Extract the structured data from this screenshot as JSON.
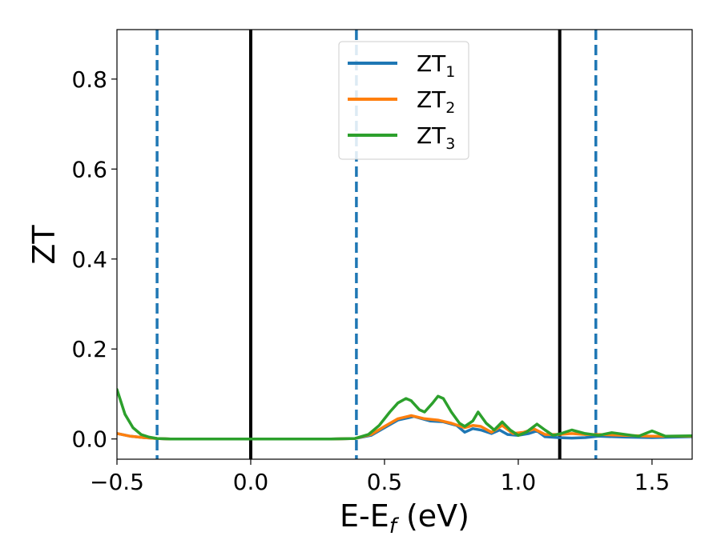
{
  "chart_data": {
    "type": "line",
    "xlabel": {
      "main": "E-E",
      "sub": "f",
      "tail": " (eV)"
    },
    "ylabel": "ZT",
    "xlim": [
      -0.5,
      1.65
    ],
    "ylim": [
      -0.045,
      0.91
    ],
    "xticks": [
      {
        "value": -0.5,
        "label": "−0.5"
      },
      {
        "value": 0.0,
        "label": "0.0"
      },
      {
        "value": 0.5,
        "label": "0.5"
      },
      {
        "value": 1.0,
        "label": "1.0"
      },
      {
        "value": 1.5,
        "label": "1.5"
      }
    ],
    "yticks": [
      {
        "value": 0.0,
        "label": "0.0"
      },
      {
        "value": 0.2,
        "label": "0.2"
      },
      {
        "value": 0.4,
        "label": "0.4"
      },
      {
        "value": 0.6,
        "label": "0.6"
      },
      {
        "value": 0.8,
        "label": "0.8"
      }
    ],
    "grid": false,
    "legend_position": "top-center",
    "vlines": [
      {
        "x": -0.35,
        "style": "dashed",
        "color": "#1f77b4"
      },
      {
        "x": 0.0,
        "style": "solid",
        "color": "#000000"
      },
      {
        "x": 0.395,
        "style": "dashed",
        "color": "#1f77b4"
      },
      {
        "x": 1.155,
        "style": "solid",
        "color": "#000000"
      },
      {
        "x": 1.29,
        "style": "dashed",
        "color": "#1f77b4"
      }
    ],
    "series": [
      {
        "name": "ZT",
        "name_sub": "1",
        "color": "#1f77b4",
        "x": [
          -0.5,
          -0.45,
          -0.4,
          -0.35,
          -0.3,
          0.3,
          0.39,
          0.45,
          0.5,
          0.55,
          0.61,
          0.67,
          0.72,
          0.77,
          0.8,
          0.83,
          0.86,
          0.9,
          0.93,
          0.96,
          1.0,
          1.04,
          1.07,
          1.1,
          1.15,
          1.2,
          1.25,
          1.3,
          1.4,
          1.5,
          1.65
        ],
        "y": [
          0.012,
          0.006,
          0.003,
          0.001,
          0.0,
          0.0,
          0.001,
          0.008,
          0.025,
          0.042,
          0.05,
          0.04,
          0.038,
          0.03,
          0.015,
          0.023,
          0.02,
          0.012,
          0.02,
          0.01,
          0.008,
          0.012,
          0.018,
          0.005,
          0.003,
          0.002,
          0.003,
          0.006,
          0.004,
          0.003,
          0.005
        ]
      },
      {
        "name": "ZT",
        "name_sub": "2",
        "color": "#ff7f0e",
        "x": [
          -0.5,
          -0.45,
          -0.4,
          -0.35,
          -0.3,
          0.3,
          0.39,
          0.45,
          0.5,
          0.55,
          0.6,
          0.65,
          0.7,
          0.75,
          0.8,
          0.83,
          0.86,
          0.9,
          0.94,
          0.98,
          1.02,
          1.06,
          1.1,
          1.15,
          1.2,
          1.25,
          1.3,
          1.4,
          1.5,
          1.65
        ],
        "y": [
          0.012,
          0.006,
          0.003,
          0.001,
          0.0,
          0.0,
          0.001,
          0.01,
          0.028,
          0.045,
          0.052,
          0.045,
          0.042,
          0.035,
          0.025,
          0.03,
          0.028,
          0.015,
          0.03,
          0.012,
          0.015,
          0.022,
          0.01,
          0.01,
          0.012,
          0.01,
          0.01,
          0.008,
          0.006,
          0.006
        ]
      },
      {
        "name": "ZT",
        "name_sub": "3",
        "color": "#2ca02c",
        "x": [
          -0.5,
          -0.47,
          -0.44,
          -0.41,
          -0.38,
          -0.35,
          -0.3,
          0.3,
          0.39,
          0.44,
          0.48,
          0.52,
          0.55,
          0.58,
          0.6,
          0.63,
          0.65,
          0.68,
          0.7,
          0.72,
          0.75,
          0.78,
          0.8,
          0.83,
          0.85,
          0.88,
          0.91,
          0.94,
          0.97,
          1.0,
          1.03,
          1.07,
          1.1,
          1.13,
          1.16,
          1.2,
          1.25,
          1.3,
          1.35,
          1.4,
          1.45,
          1.5,
          1.55,
          1.65
        ],
        "y": [
          0.11,
          0.055,
          0.025,
          0.01,
          0.004,
          0.001,
          0.0,
          0.0,
          0.001,
          0.01,
          0.03,
          0.06,
          0.08,
          0.09,
          0.085,
          0.065,
          0.06,
          0.08,
          0.095,
          0.09,
          0.06,
          0.035,
          0.028,
          0.04,
          0.06,
          0.035,
          0.02,
          0.038,
          0.02,
          0.008,
          0.015,
          0.033,
          0.02,
          0.008,
          0.012,
          0.02,
          0.012,
          0.008,
          0.014,
          0.01,
          0.006,
          0.018,
          0.006,
          0.007
        ]
      }
    ]
  }
}
